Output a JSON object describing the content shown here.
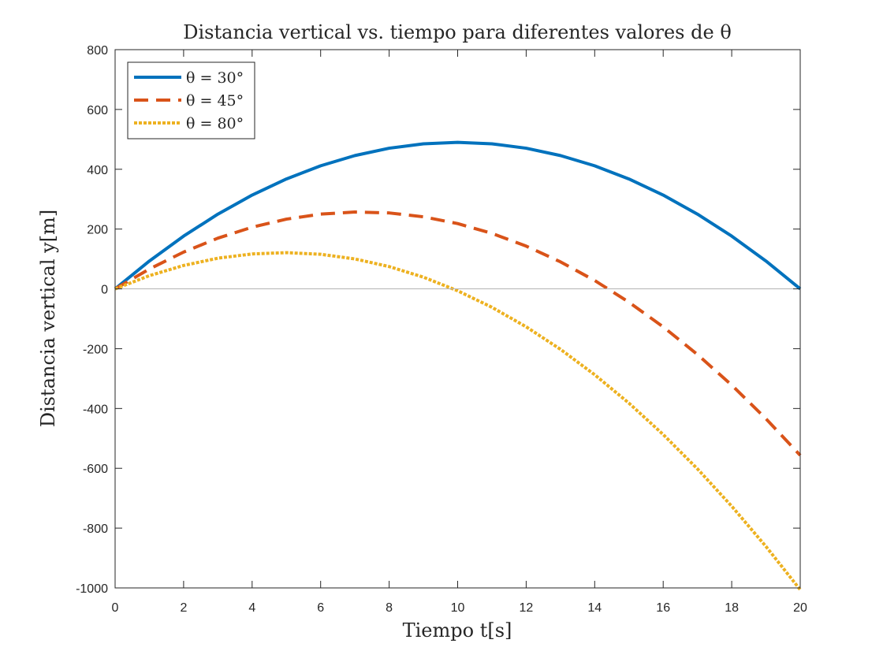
{
  "chart_data": {
    "type": "line",
    "title": "Distancia vertical vs. tiempo para diferentes valores de θ",
    "xlabel": "Tiempo t[s]",
    "ylabel": "Distancia vertical y[m]",
    "xlim": [
      0,
      20
    ],
    "ylim": [
      -1000,
      800
    ],
    "xticks": [
      0,
      2,
      4,
      6,
      8,
      10,
      12,
      14,
      16,
      18,
      20
    ],
    "yticks": [
      800,
      600,
      400,
      200,
      0,
      -200,
      -400,
      -600,
      -800,
      -1000
    ],
    "xtick_labels": [
      "0",
      "2",
      "4",
      "6",
      "8",
      "10",
      "12",
      "14",
      "16",
      "18",
      "20"
    ],
    "ytick_labels": [
      "800",
      "600",
      "400",
      "200",
      "0",
      "-200",
      "-400",
      "-600",
      "-800",
      "-1000"
    ],
    "grid": false,
    "zero_line": true,
    "legend_position": "top-left",
    "series": [
      {
        "name": "θ = 30°",
        "color": "#0072BD",
        "style": "solid",
        "points": [
          [
            0,
            0
          ],
          [
            1,
            93.1
          ],
          [
            2,
            176.4
          ],
          [
            3,
            249.9
          ],
          [
            4,
            313.6
          ],
          [
            5,
            367.5
          ],
          [
            6,
            411.6
          ],
          [
            7,
            445.9
          ],
          [
            8,
            470.4
          ],
          [
            9,
            485.1
          ],
          [
            10,
            490
          ],
          [
            11,
            485.1
          ],
          [
            12,
            470.4
          ],
          [
            13,
            445.9
          ],
          [
            14,
            411.6
          ],
          [
            15,
            367.5
          ],
          [
            16,
            313.6
          ],
          [
            17,
            249.9
          ],
          [
            18,
            176.4
          ],
          [
            19,
            93.1
          ],
          [
            20,
            0
          ]
        ]
      },
      {
        "name": "θ = 45°",
        "color": "#D95319",
        "style": "dashed",
        "points": [
          [
            0,
            0
          ],
          [
            1,
            66.4
          ],
          [
            2,
            123
          ],
          [
            3,
            169.6
          ],
          [
            4,
            206.4
          ],
          [
            5,
            233.2
          ],
          [
            6,
            250
          ],
          [
            7,
            257
          ],
          [
            8,
            254
          ],
          [
            9,
            241
          ],
          [
            10,
            218.3
          ],
          [
            11,
            185.6
          ],
          [
            12,
            143
          ],
          [
            13,
            90.5
          ],
          [
            14,
            28
          ],
          [
            15,
            -44.5
          ],
          [
            16,
            -127
          ],
          [
            17,
            -219.4
          ],
          [
            18,
            -321.8
          ],
          [
            19,
            -434.2
          ],
          [
            20,
            -556.6
          ]
        ]
      },
      {
        "name": "θ = 80°",
        "color": "#EDB120",
        "style": "dotted",
        "points": [
          [
            0,
            0
          ],
          [
            1,
            44.2
          ],
          [
            2,
            78.3
          ],
          [
            3,
            102.6
          ],
          [
            4,
            116.9
          ],
          [
            5,
            121.2
          ],
          [
            6,
            115.7
          ],
          [
            7,
            100.1
          ],
          [
            8,
            74.6
          ],
          [
            9,
            39.2
          ],
          [
            10,
            -6.3
          ],
          [
            11,
            -61.6
          ],
          [
            12,
            -126.8
          ],
          [
            13,
            -202
          ],
          [
            14,
            -287.1
          ],
          [
            15,
            -382.1
          ],
          [
            16,
            -487
          ],
          [
            17,
            -601.9
          ],
          [
            18,
            -726.7
          ],
          [
            19,
            -861.4
          ],
          [
            20,
            -1006.1
          ]
        ]
      }
    ]
  }
}
